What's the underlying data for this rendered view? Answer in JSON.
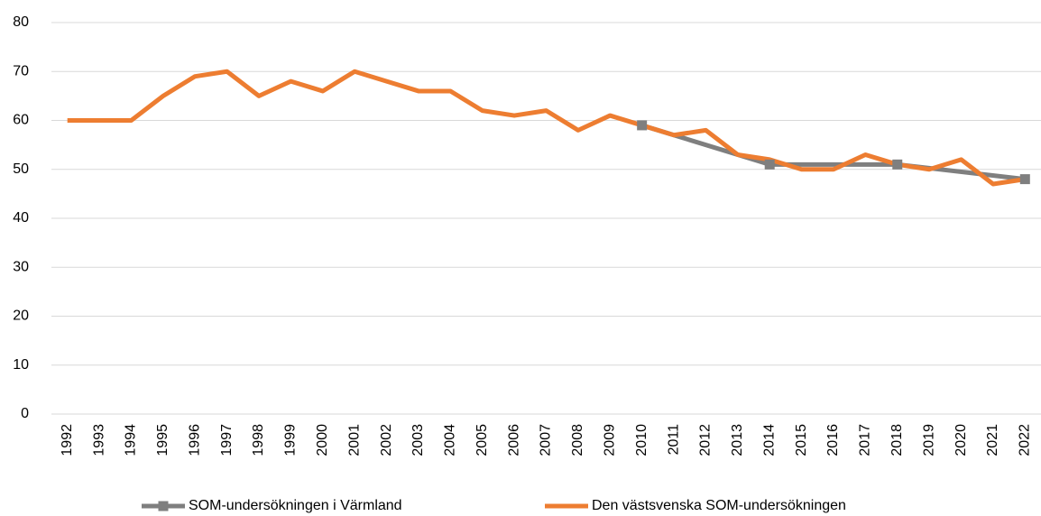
{
  "chart_data": {
    "type": "line",
    "categories": [
      "1992",
      "1993",
      "1994",
      "1995",
      "1996",
      "1997",
      "1998",
      "1999",
      "2000",
      "2001",
      "2002",
      "2003",
      "2004",
      "2005",
      "2006",
      "2007",
      "2008",
      "2009",
      "2010",
      "2011",
      "2012",
      "2013",
      "2014",
      "2015",
      "2016",
      "2017",
      "2018",
      "2019",
      "2020",
      "2021",
      "2022"
    ],
    "series": [
      {
        "name": "SOM-undersökningen i Värmland",
        "color": "#7f7f7f",
        "marker": "square",
        "connect_gaps": true,
        "values": [
          null,
          null,
          null,
          null,
          null,
          null,
          null,
          null,
          null,
          null,
          null,
          null,
          null,
          null,
          null,
          null,
          null,
          null,
          59,
          null,
          null,
          null,
          51,
          null,
          null,
          null,
          51,
          null,
          null,
          null,
          48
        ]
      },
      {
        "name": "Den västsvenska SOM-undersökningen",
        "color": "#ed7d31",
        "values": [
          60,
          60,
          60,
          65,
          69,
          70,
          65,
          68,
          66,
          70,
          68,
          66,
          66,
          62,
          61,
          62,
          58,
          61,
          59,
          57,
          58,
          53,
          52,
          50,
          50,
          53,
          51,
          50,
          52,
          47,
          48
        ]
      }
    ],
    "ylim": [
      0,
      80
    ],
    "yticks": [
      0,
      10,
      20,
      30,
      40,
      50,
      60,
      70,
      80
    ],
    "grid": true,
    "legend": "bottom"
  }
}
